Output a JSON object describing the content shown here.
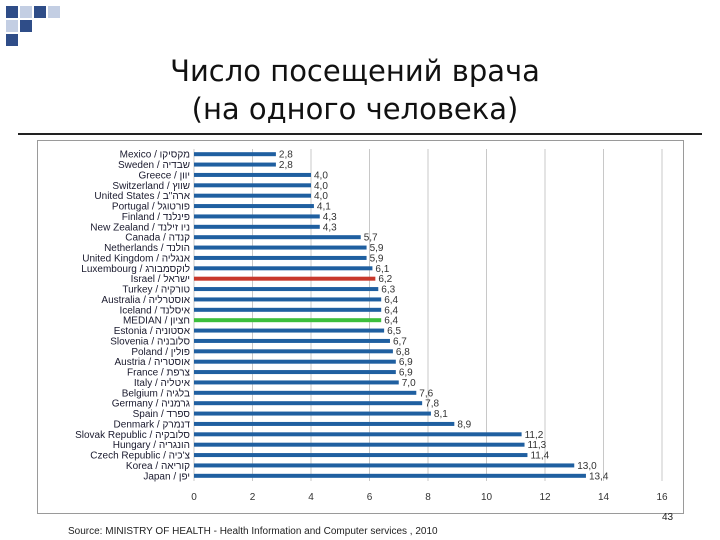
{
  "slide": {
    "title_line1": "Число посещений врача",
    "title_line2": "(на одного человека)",
    "source": "Source: MINISTRY OF HEALTH - Health Information and Computer services , 2010",
    "page_number": "43"
  },
  "colors": {
    "bar": "#1f5fa0",
    "highlight_israel": "#c8382b",
    "highlight_median": "#3cbf3c",
    "deco_dark": "#2f4d88",
    "deco_light": "#c3cee3",
    "grid": "#c8c8c8"
  },
  "chart_data": {
    "type": "bar",
    "orientation": "horizontal",
    "categories": [
      "Mexico / מקסיקו",
      "Sweden / שבדיה",
      "Greece / יוון",
      "Switzerland / שווץ",
      "United States / ארה\"ב",
      "Portugal / פורטוגל",
      "Finland / פינלנד",
      "New Zealand / ניו זילנד",
      "Canada / קנדה",
      "Netherlands / הולנד",
      "United Kingdom / אנגליה",
      "Luxembourg / לוקסמבורג",
      "Israel / ישראל",
      "Turkey / טורקיה",
      "Australia / אוסטרליה",
      "Iceland / איסלנד",
      "MEDIAN / חציון",
      "Estonia / אסטוניה",
      "Slovenia / סלובניה",
      "Poland / פולין",
      "Austria / אוסטריה",
      "France / צרפת",
      "Italy / איטליה",
      "Belgium / בלגיה",
      "Germany / גרמניה",
      "Spain / ספרד",
      "Denmark / דנמרק",
      "Slovak Republic / סלובקיה",
      "Hungary / הונגריה",
      "Czech Republic / צ'כיה",
      "Korea / קוריאה",
      "Japan / יפן"
    ],
    "values": [
      2.8,
      2.8,
      4.0,
      4.0,
      4.0,
      4.1,
      4.3,
      4.3,
      5.7,
      5.9,
      5.9,
      6.1,
      6.2,
      6.3,
      6.4,
      6.4,
      6.4,
      6.5,
      6.7,
      6.8,
      6.9,
      6.9,
      7.0,
      7.6,
      7.8,
      8.1,
      8.9,
      11.2,
      11.3,
      11.4,
      13.0,
      13.4
    ],
    "value_labels": [
      "2,8",
      "2,8",
      "4,0",
      "4,0",
      "4,0",
      "4,1",
      "4,3",
      "4,3",
      "5,7",
      "5,9",
      "5,9",
      "6,1",
      "6,2",
      "6,3",
      "6,4",
      "6,4",
      "6,4",
      "6,5",
      "6,7",
      "6,8",
      "6,9",
      "6,9",
      "7,0",
      "7,6",
      "7,8",
      "8,1",
      "8,9",
      "11,2",
      "11,3",
      "11,4",
      "13,0",
      "13,4"
    ],
    "highlight": {
      "Israel / ישראל": "highlight_israel",
      "MEDIAN / חציון": "highlight_median"
    },
    "xlim": [
      0,
      16
    ],
    "xticks": [
      0,
      2,
      4,
      6,
      8,
      10,
      12,
      14,
      16
    ],
    "grid": true,
    "title": "",
    "xlabel": "",
    "ylabel": ""
  }
}
